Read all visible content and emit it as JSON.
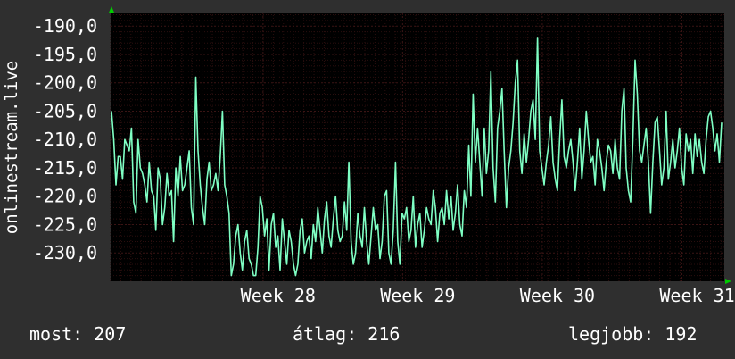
{
  "chart_data": {
    "type": "line",
    "ylabel": "onlinestream.live",
    "yticks": [
      "-190,0",
      "-195,0",
      "-200,0",
      "-205,0",
      "-210,0",
      "-215,0",
      "-220,0",
      "-225,0",
      "-230,0"
    ],
    "ytick_values": [
      -190,
      -195,
      -200,
      -205,
      -210,
      -215,
      -220,
      -225,
      -230
    ],
    "ylim": [
      -235,
      -187.6
    ],
    "xlim": [
      0,
      1
    ],
    "xticks": [
      "Week 28",
      "Week 29",
      "Week 30",
      "Week 31"
    ],
    "xtick_positions": [
      0.2483,
      0.4758,
      0.7034,
      0.931
    ],
    "grid": true,
    "series": [
      {
        "color": "#7fffc4",
        "values": [
          -205,
          -210,
          -218,
          -213,
          -213,
          -217,
          -210,
          -211,
          -212,
          -208,
          -221,
          -223,
          -210,
          -215,
          -216,
          -218,
          -221,
          -214,
          -219,
          -220,
          -226,
          -215,
          -217,
          -225,
          -222,
          -216,
          -220,
          -219,
          -228,
          -215,
          -220,
          -213,
          -219,
          -218,
          -215,
          -212,
          -222,
          -225,
          -199,
          -212,
          -218,
          -222,
          -225,
          -217,
          -214,
          -219,
          -218,
          -216,
          -219,
          -213,
          -205,
          -218,
          -220,
          -223,
          -234,
          -232,
          -227,
          -225,
          -230,
          -233,
          -228,
          -226,
          -231,
          -232,
          -234,
          -234,
          -229,
          -220,
          -222,
          -227,
          -224,
          -233,
          -225,
          -223,
          -229,
          -227,
          -233,
          -224,
          -228,
          -232,
          -226,
          -228,
          -232,
          -234,
          -232,
          -226,
          -224,
          -230,
          -228,
          -227,
          -231,
          -225,
          -228,
          -222,
          -226,
          -230,
          -224,
          -221,
          -227,
          -229,
          -224,
          -220,
          -226,
          -228,
          -227,
          -221,
          -226,
          -214,
          -228,
          -232,
          -230,
          -223,
          -227,
          -229,
          -222,
          -228,
          -232,
          -227,
          -222,
          -226,
          -225,
          -231,
          -228,
          -220,
          -219,
          -230,
          -232,
          -226,
          -214,
          -228,
          -232,
          -223,
          -224,
          -222,
          -228,
          -226,
          -220,
          -229,
          -225,
          -223,
          -229,
          -226,
          -222,
          -224,
          -225,
          -219,
          -222,
          -228,
          -223,
          -222,
          -225,
          -219,
          -224,
          -220,
          -226,
          -223,
          -218,
          -225,
          -227,
          -219,
          -222,
          -211,
          -220,
          -202,
          -214,
          -208,
          -214,
          -220,
          -208,
          -216,
          -212,
          -198,
          -215,
          -221,
          -208,
          -205,
          -201,
          -212,
          -222,
          -215,
          -212,
          -207,
          -200,
          -196,
          -212,
          -216,
          -209,
          -214,
          -210,
          -205,
          -203,
          -210,
          -192,
          -212,
          -215,
          -218,
          -214,
          -211,
          -206,
          -214,
          -217,
          -219,
          -210,
          -203,
          -213,
          -215,
          -212,
          -210,
          -214,
          -219,
          -214,
          -208,
          -217,
          -212,
          -205,
          -210,
          -214,
          -213,
          -218,
          -210,
          -212,
          -215,
          -219,
          -214,
          -211,
          -212,
          -216,
          -210,
          -215,
          -217,
          -205,
          -201,
          -215,
          -219,
          -221,
          -210,
          -196,
          -202,
          -212,
          -214,
          -211,
          -208,
          -214,
          -223,
          -214,
          -207,
          -206,
          -212,
          -218,
          -215,
          -205,
          -217,
          -214,
          -210,
          -215,
          -212,
          -208,
          -215,
          -218,
          -209,
          -212,
          -210,
          -216,
          -209,
          -213,
          -210,
          -214,
          -216,
          -210,
          -206,
          -205,
          -208,
          -212,
          -209,
          -214,
          -207
        ],
        "value_note": "values sampled left-to-right over the plot"
      }
    ]
  },
  "stats": {
    "now": "most: 207",
    "avg": "átlag: 216",
    "best": "legjobb: 192"
  },
  "colors": {
    "background": "#2f2f2f",
    "plot_bg": "#000000",
    "line": "#7fffc4",
    "grid_major": "#3a1414",
    "arrow": "#00cc00"
  }
}
